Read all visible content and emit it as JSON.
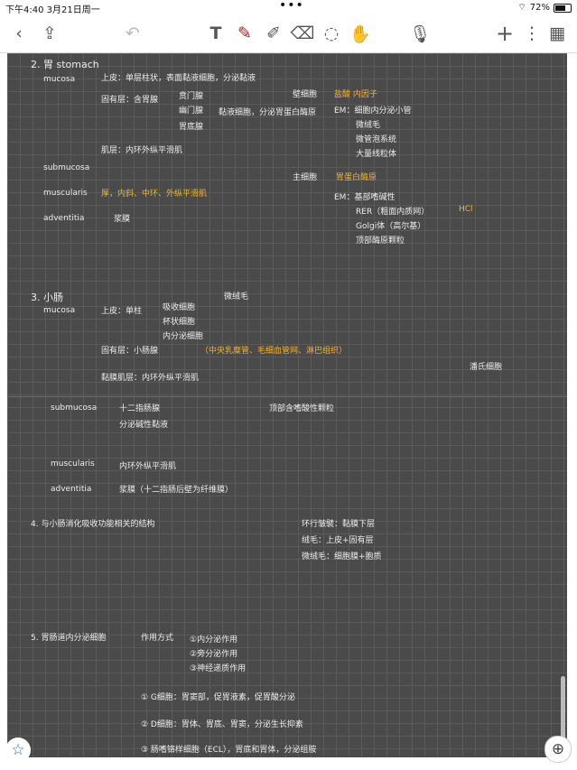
{
  "status": {
    "time": "下午4:40",
    "date": "3月21日周一",
    "battery": "72%"
  },
  "toolbar": {
    "icons": [
      "back-chevron",
      "share",
      "undo",
      "text-tool",
      "pen",
      "highlighter",
      "eraser",
      "lasso",
      "hand",
      "microphone",
      "add",
      "more",
      "grid-view"
    ]
  },
  "notes": {
    "stomach_title": "2. 胃 stomach",
    "stomach_mucosa": "mucosa",
    "stomach_epi": "上皮：单层柱状，表面黏液细胞，分泌黏液",
    "stomach_lamina": "固有层：含胃腺",
    "gland_1": "贲门腺",
    "gland_2": "幽门腺",
    "gland_3": "胃底腺",
    "gland_note": "黏液细胞，分泌胃蛋白酶原",
    "mucosa_muscle": "肌层：内环外纵平滑肌",
    "stomach_submucosa": "submucosa",
    "stomach_muscularis": "muscularis",
    "muscularis_desc": "厚，内斜、中环、外纵平滑肌",
    "stomach_adventitia": "adventitia",
    "adventitia_desc": "浆膜",
    "parietal": "壁细胞",
    "parietal_func": "盐酸 内因子",
    "parietal_em": "EM：细胞内分泌小管",
    "parietal_em2": "微绒毛",
    "parietal_em3": "微管泡系统",
    "parietal_em4": "大量线粒体",
    "chief": "主细胞",
    "chief_func": "胃蛋白酶原",
    "chief_em": "EM：基部嗜碱性",
    "chief_rer": "RER（粗面内质网）",
    "chief_golgi": "Golgi体（高尔基）",
    "chief_granule": "顶部酶原颗粒",
    "hcl": "HCl",
    "small_title": "3. 小肠",
    "small_mucosa": "mucosa",
    "small_epi": "上皮：单柱",
    "small_cells_1": "吸收细胞",
    "small_cells_2": "杯状细胞",
    "small_cells_3": "内分泌细胞",
    "small_micro": "微绒毛",
    "small_lamina": "固有层：小肠腺",
    "small_lamina_note": "（中央乳糜管、毛细血管网、淋巴组织）",
    "small_musc_mucosa": "黏膜肌层：内环外纵平滑肌",
    "small_submucosa": "submucosa",
    "small_sub_desc": "十二指肠腺",
    "small_sub_desc2": "分泌碱性黏液",
    "small_muscularis": "muscularis",
    "small_muscularis_desc": "内环外纵平滑肌",
    "small_adventitia": "adventitia",
    "small_adventitia_desc": "浆膜（十二指肠后壁为纤维膜）",
    "paneth": "潘氏细胞",
    "paneth_desc": "顶部含嗜酸性颗粒",
    "section4": "4. 与小肠消化吸收功能相关的结构",
    "section4_a": "环行皱襞：黏膜下层",
    "section4_b": "绒毛：上皮+固有层",
    "section4_c": "微绒毛：细胞膜+胞质",
    "section5": "5. 胃肠道内分泌细胞",
    "section5_a": "作用方式",
    "section5_b1": "①内分泌作用",
    "section5_b2": "②旁分泌作用",
    "section5_b3": "③神经递质作用",
    "g_cell": "① G细胞：胃窦部，促胃液素，促胃酸分泌",
    "d_cell": "② D细胞：胃体、胃底、胃窦，分泌生长抑素",
    "ecl_cell": "③ 肠嗜铬样细胞（ECL），胃底和胃体，分泌组胺"
  },
  "colors": {
    "canvas": "#4a4a4a",
    "ink_white": "#ececec",
    "ink_yellow": "#f2b230",
    "ink_purple": "#a884e0",
    "pen_active": "#b02020"
  }
}
